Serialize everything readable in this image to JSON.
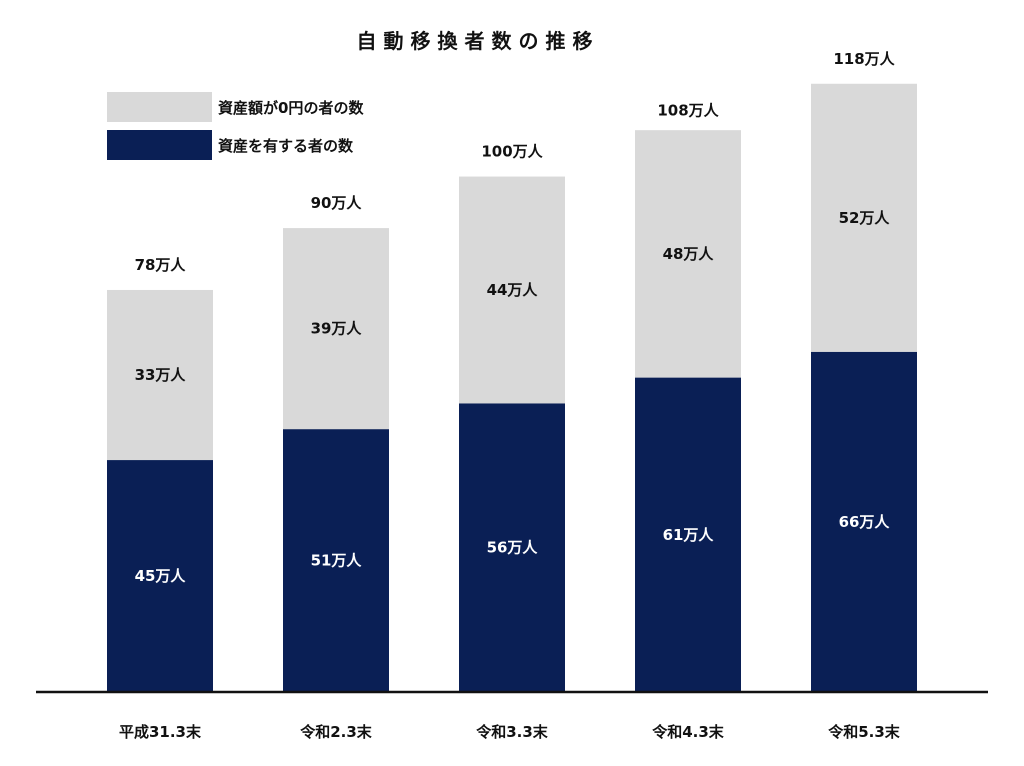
{
  "chart_data": {
    "type": "bar",
    "stacked": true,
    "title": "自動移換者数の推移",
    "categories": [
      "平成31.3末",
      "令和2.3末",
      "令和3.3末",
      "令和4.3末",
      "令和5.3末"
    ],
    "series": [
      {
        "name": "資産を有する者の数",
        "values": [
          45,
          51,
          56,
          61,
          66
        ],
        "labels": [
          "45万人",
          "51万人",
          "56万人",
          "61万人",
          "66万人"
        ],
        "color": "#0a1f55"
      },
      {
        "name": "資産額が0円の者の数",
        "values": [
          33,
          39,
          44,
          48,
          52
        ],
        "labels": [
          "33万人",
          "39万人",
          "44万人",
          "48万人",
          "52万人"
        ],
        "color": "#d9d9d9"
      }
    ],
    "totals": [
      78,
      90,
      100,
      108,
      118
    ],
    "total_labels": [
      "78万人",
      "90万人",
      "100万人",
      "108万人",
      "118万人"
    ],
    "unit": "万人",
    "ylim": [
      0,
      123
    ],
    "legend_position": "top-left",
    "grid": false,
    "xlabel": "",
    "ylabel": ""
  }
}
